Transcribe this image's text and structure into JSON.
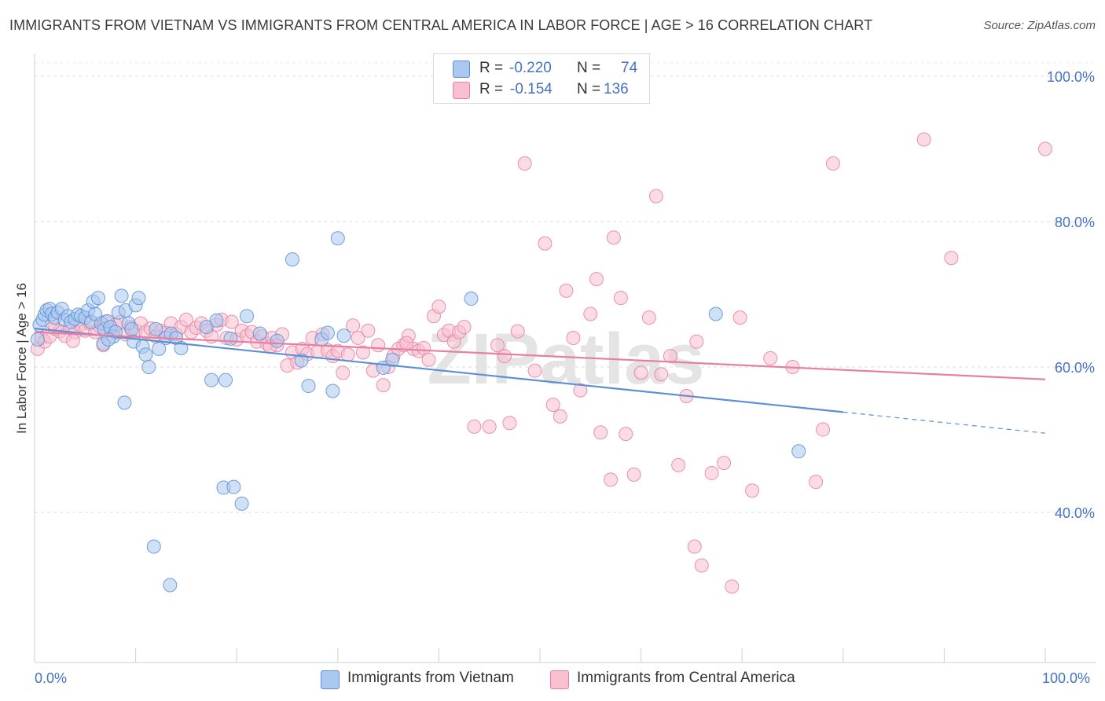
{
  "title": "IMMIGRANTS FROM VIETNAM VS IMMIGRANTS FROM CENTRAL AMERICA IN LABOR FORCE | AGE > 16 CORRELATION CHART",
  "source": "Source: ZipAtlas.com",
  "watermark": "ZIPatlas",
  "legend": {
    "r_label": "R =",
    "n_label": "N =",
    "rows": [
      {
        "r": "-0.220",
        "n": "74",
        "color": "#aac8ee",
        "edge": "#5b8fd6"
      },
      {
        "r": "-0.154",
        "n": "136",
        "color": "#f7bfd0",
        "edge": "#e87fa1"
      }
    ]
  },
  "chart_data": {
    "type": "scatter",
    "title": "IMMIGRANTS FROM VIETNAM VS IMMIGRANTS FROM CENTRAL AMERICA IN LABOR FORCE | AGE > 16 CORRELATION CHART",
    "xlabel": "",
    "ylabel": "In Labor Force | Age > 16",
    "xlim": [
      0,
      100
    ],
    "ylim": [
      20,
      100
    ],
    "x_tick_labels": [
      "0.0%",
      "100.0%"
    ],
    "y_tick_labels": [
      "40.0%",
      "60.0%",
      "80.0%",
      "100.0%"
    ],
    "y_ticks": [
      40,
      60,
      80,
      100
    ],
    "grid": true,
    "legend_position": "top-center",
    "series": [
      {
        "name": "Immigrants from Vietnam",
        "color": "#5b8fd6",
        "fill": "#aac8ee",
        "trend": {
          "x0": 0,
          "y0": 65.3,
          "x1": 80,
          "y1": 53.8,
          "dash_x1": 100,
          "dash_y1": 50.9
        },
        "points": [
          [
            0.3,
            63.8
          ],
          [
            0.5,
            65.8
          ],
          [
            0.8,
            66.5
          ],
          [
            1.0,
            67.2
          ],
          [
            1.2,
            67.8
          ],
          [
            1.5,
            68.0
          ],
          [
            1.7,
            67.3
          ],
          [
            2.0,
            66.8
          ],
          [
            2.3,
            67.5
          ],
          [
            2.7,
            68.0
          ],
          [
            3.0,
            66.5
          ],
          [
            3.3,
            67.0
          ],
          [
            3.6,
            66.2
          ],
          [
            4.0,
            66.6
          ],
          [
            4.3,
            67.2
          ],
          [
            4.6,
            67.0
          ],
          [
            5.0,
            66.8
          ],
          [
            5.3,
            67.8
          ],
          [
            5.6,
            66.2
          ],
          [
            6.0,
            67.3
          ],
          [
            5.8,
            69.0
          ],
          [
            6.3,
            69.5
          ],
          [
            6.6,
            66.0
          ],
          [
            6.9,
            65.2
          ],
          [
            7.2,
            66.3
          ],
          [
            7.5,
            65.5
          ],
          [
            7.8,
            64.2
          ],
          [
            8.0,
            64.8
          ],
          [
            8.3,
            67.5
          ],
          [
            8.6,
            69.8
          ],
          [
            9.0,
            67.8
          ],
          [
            9.3,
            66.0
          ],
          [
            9.6,
            65.2
          ],
          [
            10.0,
            68.5
          ],
          [
            10.3,
            69.5
          ],
          [
            6.8,
            63.2
          ],
          [
            7.3,
            63.8
          ],
          [
            9.8,
            63.5
          ],
          [
            10.7,
            62.8
          ],
          [
            11.0,
            61.7
          ],
          [
            11.3,
            60.0
          ],
          [
            12.0,
            65.2
          ],
          [
            12.3,
            62.5
          ],
          [
            13.0,
            64.0
          ],
          [
            13.5,
            64.6
          ],
          [
            14.0,
            64.0
          ],
          [
            14.5,
            62.6
          ],
          [
            17.0,
            65.5
          ],
          [
            18.0,
            66.4
          ],
          [
            8.9,
            55.1
          ],
          [
            17.5,
            58.2
          ],
          [
            18.9,
            58.2
          ],
          [
            19.4,
            63.9
          ],
          [
            21.0,
            67.0
          ],
          [
            25.5,
            74.8
          ],
          [
            22.3,
            64.6
          ],
          [
            24.0,
            63.6
          ],
          [
            26.4,
            60.9
          ],
          [
            27.1,
            57.4
          ],
          [
            28.4,
            63.8
          ],
          [
            29.0,
            64.7
          ],
          [
            29.5,
            56.7
          ],
          [
            30.0,
            77.7
          ],
          [
            30.6,
            64.3
          ],
          [
            34.5,
            59.9
          ],
          [
            35.4,
            61.0
          ],
          [
            43.2,
            69.4
          ],
          [
            18.7,
            43.4
          ],
          [
            19.7,
            43.5
          ],
          [
            20.5,
            41.2
          ],
          [
            11.8,
            35.3
          ],
          [
            13.4,
            30.0
          ],
          [
            75.6,
            48.4
          ],
          [
            67.4,
            67.3
          ]
        ]
      },
      {
        "name": "Immigrants from Central America",
        "color": "#e87fa1",
        "fill": "#f7bfd0",
        "trend": {
          "x0": 0,
          "y0": 64.8,
          "x1": 100,
          "y1": 58.3
        },
        "points": [
          [
            0.3,
            62.5
          ],
          [
            0.7,
            64.0
          ],
          [
            1.0,
            63.5
          ],
          [
            1.5,
            64.2
          ],
          [
            2.0,
            65.3
          ],
          [
            2.5,
            64.9
          ],
          [
            3.0,
            64.3
          ],
          [
            3.5,
            65.5
          ],
          [
            4.0,
            64.8
          ],
          [
            4.5,
            65.8
          ],
          [
            5.0,
            65.0
          ],
          [
            5.5,
            66.0
          ],
          [
            6.0,
            64.8
          ],
          [
            6.5,
            65.5
          ],
          [
            7.0,
            66.2
          ],
          [
            7.5,
            65.2
          ],
          [
            8.0,
            65.8
          ],
          [
            8.5,
            66.2
          ],
          [
            9.0,
            64.5
          ],
          [
            9.5,
            65.5
          ],
          [
            10.0,
            65.0
          ],
          [
            10.5,
            66.0
          ],
          [
            11.0,
            64.8
          ],
          [
            11.5,
            65.3
          ],
          [
            12.0,
            64.2
          ],
          [
            12.5,
            65.0
          ],
          [
            13.0,
            64.7
          ],
          [
            13.5,
            66.0
          ],
          [
            14.0,
            64.5
          ],
          [
            14.5,
            65.5
          ],
          [
            15.0,
            66.5
          ],
          [
            15.5,
            64.8
          ],
          [
            16.0,
            65.4
          ],
          [
            16.5,
            66.0
          ],
          [
            17.0,
            65.0
          ],
          [
            17.5,
            64.2
          ],
          [
            18.0,
            65.8
          ],
          [
            18.5,
            66.5
          ],
          [
            19.0,
            64.0
          ],
          [
            19.5,
            66.2
          ],
          [
            20.0,
            63.8
          ],
          [
            20.5,
            65.0
          ],
          [
            21.0,
            64.3
          ],
          [
            21.5,
            64.8
          ],
          [
            22.0,
            63.5
          ],
          [
            22.5,
            64.2
          ],
          [
            23.0,
            63.2
          ],
          [
            23.5,
            64.0
          ],
          [
            24.0,
            63.0
          ],
          [
            24.5,
            64.5
          ],
          [
            25.0,
            60.2
          ],
          [
            25.5,
            62.0
          ],
          [
            26.0,
            60.6
          ],
          [
            26.5,
            62.5
          ],
          [
            27.0,
            61.8
          ],
          [
            27.5,
            64.0
          ],
          [
            28.0,
            62.1
          ],
          [
            28.5,
            64.5
          ],
          [
            29.0,
            62.3
          ],
          [
            29.5,
            61.5
          ],
          [
            30.0,
            62.2
          ],
          [
            30.5,
            59.2
          ],
          [
            31.0,
            61.7
          ],
          [
            31.5,
            65.7
          ],
          [
            32.0,
            64.0
          ],
          [
            32.5,
            62.0
          ],
          [
            33.0,
            65.0
          ],
          [
            33.5,
            59.5
          ],
          [
            34.0,
            63.0
          ],
          [
            34.5,
            57.5
          ],
          [
            35.0,
            60.0
          ],
          [
            35.5,
            61.5
          ],
          [
            36.0,
            62.5
          ],
          [
            36.5,
            63.0
          ],
          [
            37.0,
            64.3
          ],
          [
            37.5,
            62.5
          ],
          [
            38.0,
            62.2
          ],
          [
            38.5,
            62.6
          ],
          [
            39.0,
            61.0
          ],
          [
            39.5,
            67.0
          ],
          [
            40.0,
            68.3
          ],
          [
            40.5,
            64.4
          ],
          [
            41.0,
            65.0
          ],
          [
            41.5,
            63.5
          ],
          [
            42.0,
            64.8
          ],
          [
            42.5,
            65.5
          ],
          [
            43.5,
            51.8
          ],
          [
            45.0,
            51.8
          ],
          [
            45.8,
            63.0
          ],
          [
            46.5,
            61.5
          ],
          [
            47.0,
            52.3
          ],
          [
            47.8,
            64.9
          ],
          [
            48.5,
            88.0
          ],
          [
            49.5,
            59.5
          ],
          [
            50.5,
            77.0
          ],
          [
            51.3,
            54.8
          ],
          [
            52.0,
            53.2
          ],
          [
            52.6,
            70.5
          ],
          [
            53.3,
            64.0
          ],
          [
            54.0,
            56.8
          ],
          [
            55.0,
            67.3
          ],
          [
            55.6,
            72.1
          ],
          [
            56.0,
            51.0
          ],
          [
            57.0,
            44.5
          ],
          [
            57.3,
            77.8
          ],
          [
            58.0,
            69.5
          ],
          [
            58.5,
            50.8
          ],
          [
            59.3,
            45.2
          ],
          [
            60.0,
            59.2
          ],
          [
            60.8,
            66.8
          ],
          [
            61.5,
            83.5
          ],
          [
            62.0,
            59.0
          ],
          [
            62.9,
            61.5
          ],
          [
            63.7,
            46.5
          ],
          [
            64.5,
            56.0
          ],
          [
            65.3,
            35.3
          ],
          [
            65.5,
            63.5
          ],
          [
            66.0,
            32.7
          ],
          [
            67.0,
            45.4
          ],
          [
            68.2,
            46.8
          ],
          [
            69.0,
            29.8
          ],
          [
            69.8,
            66.8
          ],
          [
            71.0,
            43.0
          ],
          [
            72.8,
            61.2
          ],
          [
            75.0,
            60.0
          ],
          [
            77.3,
            44.2
          ],
          [
            78.0,
            51.4
          ],
          [
            79.0,
            88.0
          ],
          [
            88.0,
            91.3
          ],
          [
            90.7,
            75.0
          ],
          [
            100.0,
            90.0
          ],
          [
            1.8,
            66.0
          ],
          [
            3.8,
            63.6
          ],
          [
            6.8,
            63.0
          ],
          [
            23.3,
            62.8
          ],
          [
            36.8,
            63.3
          ]
        ]
      }
    ]
  },
  "bottom_legend": [
    {
      "label": "Immigrants from Vietnam"
    },
    {
      "label": "Immigrants from Central America"
    }
  ]
}
